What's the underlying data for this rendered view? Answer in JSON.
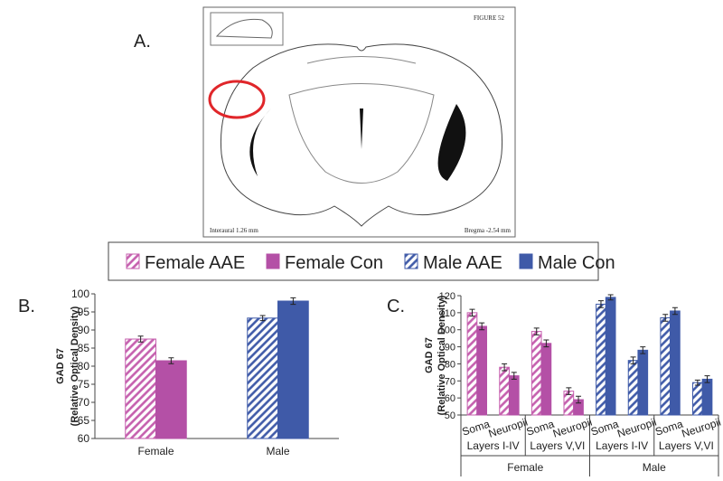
{
  "panel_labels": [
    "A.",
    "B.",
    "C."
  ],
  "atlas": {
    "figure": "FIGURE 52",
    "interaural": "Interaural 1.26 mm",
    "bregma": "Bregma -2.54 mm"
  },
  "chart_data": [
    {
      "type": "bar",
      "ylabel": [
        "GAD 67",
        "(Relative Optical Density)"
      ],
      "categories": [
        "Female",
        "Male"
      ],
      "series": [
        {
          "name": "Female AAE",
          "color": "#c55fae",
          "hatch": true,
          "values": [
            87.5,
            null
          ],
          "errors": [
            0.8,
            null
          ]
        },
        {
          "name": "Female Con",
          "color": "#b450a6",
          "hatch": false,
          "values": [
            81.5,
            null
          ],
          "errors": [
            0.8,
            null
          ]
        },
        {
          "name": "Male AAE",
          "color": "#3f5aa8",
          "hatch": true,
          "values": [
            null,
            93.3
          ],
          "errors": [
            null,
            0.7
          ]
        },
        {
          "name": "Male Con",
          "color": "#3f5aa8",
          "hatch": false,
          "values": [
            null,
            98
          ],
          "errors": [
            null,
            0.9
          ]
        }
      ],
      "ylim": [
        60,
        100
      ],
      "yticks": [
        60,
        65,
        70,
        75,
        80,
        85,
        90,
        95,
        100
      ]
    },
    {
      "type": "bar",
      "ylabel": [
        "GAD 67",
        "(Relative Optical Density)"
      ],
      "categories": [
        "Soma",
        "Neuropil",
        "Soma",
        "Neuropil",
        "Soma",
        "Neuropil",
        "Soma",
        "Neuropil"
      ],
      "layers": [
        "Layers I-IV",
        "Layers V,VI",
        "Layers I-IV",
        "Layers V,VI"
      ],
      "groups": [
        "Female",
        "Male"
      ],
      "series": [
        {
          "name": "Female AAE",
          "color": "#c55fae",
          "hatch": true,
          "values": [
            110,
            78,
            99,
            64,
            null,
            null,
            null,
            null
          ],
          "errors": [
            2,
            2,
            2,
            2,
            null,
            null,
            null,
            null
          ]
        },
        {
          "name": "Female Con",
          "color": "#b450a6",
          "hatch": false,
          "values": [
            102,
            73,
            92,
            59,
            null,
            null,
            null,
            null
          ],
          "errors": [
            2,
            2,
            2,
            2,
            null,
            null,
            null,
            null
          ]
        },
        {
          "name": "Male AAE",
          "color": "#3f5aa8",
          "hatch": true,
          "values": [
            null,
            null,
            null,
            null,
            115,
            82,
            107,
            69
          ],
          "errors": [
            null,
            null,
            null,
            null,
            2,
            2,
            2,
            1.5
          ]
        },
        {
          "name": "Male Con",
          "color": "#3f5aa8",
          "hatch": false,
          "values": [
            null,
            null,
            null,
            null,
            119,
            88,
            111,
            71
          ],
          "errors": [
            null,
            null,
            null,
            null,
            1.5,
            2,
            2,
            2
          ]
        }
      ],
      "ylim": [
        50,
        120
      ],
      "yticks": [
        50,
        60,
        70,
        80,
        90,
        100,
        110,
        120
      ]
    }
  ]
}
